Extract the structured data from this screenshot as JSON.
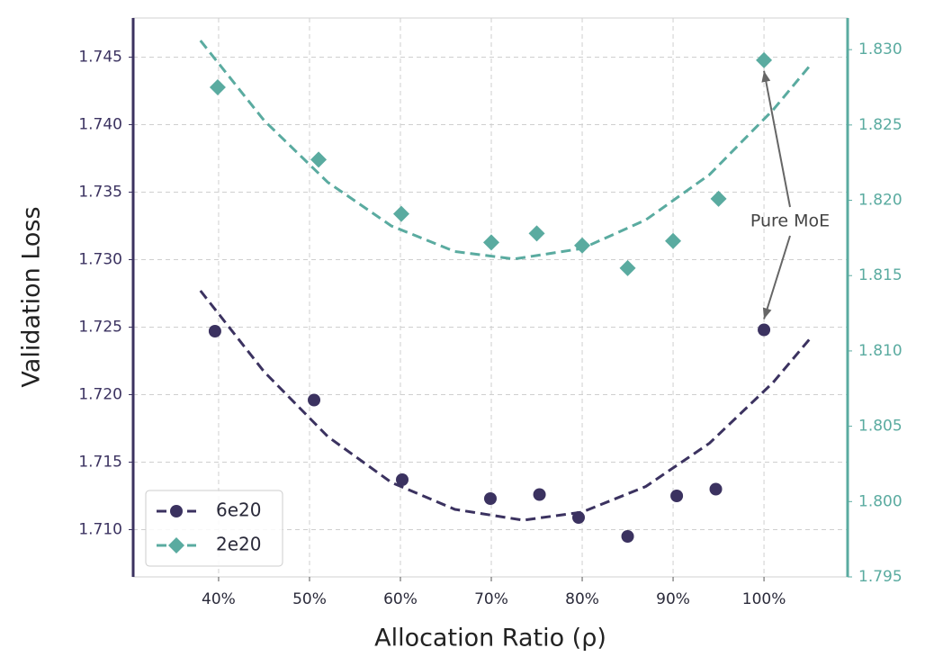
{
  "chart_data": {
    "type": "scatter",
    "xlabel": "Allocation Ratio (ρ)",
    "ylabel": "Validation Loss",
    "xlim": [
      30.6,
      109.2
    ],
    "xticks": [
      {
        "value": 40,
        "label": "40%"
      },
      {
        "value": 50,
        "label": "50%"
      },
      {
        "value": 60,
        "label": "60%"
      },
      {
        "value": 70,
        "label": "70%"
      },
      {
        "value": 80,
        "label": "80%"
      },
      {
        "value": 90,
        "label": "90%"
      },
      {
        "value": 100,
        "label": "100%"
      }
    ],
    "ylim": [
      1.7065,
      1.7479
    ],
    "yticks": [
      {
        "value": 1.71,
        "label": "1.710"
      },
      1.715,
      {
        "value": 1.72,
        "label": "1.720"
      },
      1.725,
      {
        "value": 1.73,
        "label": "1.730"
      },
      1.735,
      {
        "value": 1.74,
        "label": "1.740"
      },
      1.745
    ],
    "y2lim": [
      1.795,
      1.8321
    ],
    "y2ticks": [
      1.795,
      {
        "value": 1.8,
        "label": "1.800"
      },
      1.805,
      {
        "value": 1.81,
        "label": "1.810"
      },
      1.815,
      {
        "value": 1.82,
        "label": "1.820"
      },
      1.825,
      {
        "value": 1.83,
        "label": "1.830"
      }
    ],
    "grid": true,
    "legend": "lower left",
    "annotation": "Pure MoE",
    "series": [
      {
        "name": "6e20",
        "color": "#3b3260",
        "marker": "circle",
        "x": [
          39.6,
          50.5,
          60.2,
          69.9,
          75.3,
          79.6,
          85,
          90.4,
          94.7,
          100
        ],
        "values": [
          1.7247,
          1.7196,
          1.7137,
          1.7123,
          1.7126,
          1.7109,
          1.7095,
          1.7125,
          1.713,
          1.7248
        ],
        "fit_x": [
          38,
          45,
          52,
          59,
          66,
          73.5,
          80,
          87,
          94,
          101,
          105
        ],
        "fit_values": [
          1.7277,
          1.7217,
          1.7169,
          1.7135,
          1.7115,
          1.7107,
          1.7113,
          1.7132,
          1.7164,
          1.7209,
          1.7241
        ]
      },
      {
        "name": "2e20",
        "color": "#5aaba0",
        "marker": "diamond",
        "axis": "y2",
        "x": [
          39.9,
          51,
          60.1,
          70,
          75,
          80,
          85,
          90,
          95,
          100
        ],
        "values": [
          1.8275,
          1.8227,
          1.8191,
          1.8172,
          1.8178,
          1.817,
          1.8155,
          1.8173,
          1.8201,
          1.8293
        ],
        "fit_x": [
          38,
          45,
          52,
          59,
          66,
          72.5,
          80,
          87,
          94,
          101,
          105
        ],
        "fit_values": [
          1.8306,
          1.8253,
          1.8212,
          1.8183,
          1.8166,
          1.8161,
          1.8168,
          1.8187,
          1.8217,
          1.826,
          1.8289
        ]
      }
    ]
  }
}
